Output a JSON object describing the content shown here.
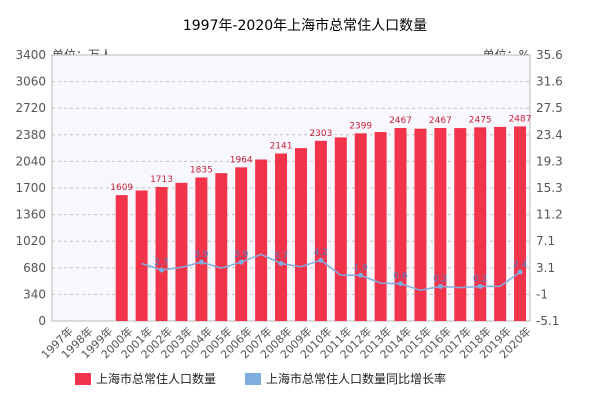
{
  "chart_data": {
    "type": "bar",
    "title": "1997年-2020年上海市总常住人口数量",
    "left_axis_unit": "单位：万人",
    "right_axis_unit": "单位：%",
    "categories": [
      "1997年",
      "1998年",
      "1999年",
      "2000年",
      "2001年",
      "2002年",
      "2003年",
      "2004年",
      "2005年",
      "2006年",
      "2007年",
      "2008年",
      "2009年",
      "2010年",
      "2011年",
      "2012年",
      "2013年",
      "2014年",
      "2015年",
      "2016年",
      "2017年",
      "2018年",
      "2019年",
      "2020年"
    ],
    "left_ticks": [
      "0",
      "340",
      "680",
      "1020",
      "1360",
      "1700",
      "2040",
      "2380",
      "2720",
      "3060",
      "3400"
    ],
    "right_ticks": [
      "-5.1",
      "-1",
      "3.1",
      "7.1",
      "11.2",
      "15.3",
      "19.3",
      "23.4",
      "27.5",
      "31.6",
      "35.6"
    ],
    "ylim_left": [
      0,
      3400
    ],
    "ylim_right": [
      -5.1,
      35.6
    ],
    "series": [
      {
        "name": "上海市总常住人口数量",
        "type": "bar",
        "axis": "left",
        "color": "#f2344b",
        "values": [
          null,
          null,
          null,
          1609,
          1668,
          1713,
          1766,
          1835,
          1890,
          1964,
          2064,
          2141,
          2210,
          2303,
          2347,
          2399,
          2415,
          2467,
          2458,
          2467,
          2466,
          2475,
          2481,
          2487
        ],
        "label_indices": [
          3,
          5,
          7,
          9,
          11,
          13,
          15,
          17,
          19,
          21,
          23
        ],
        "labels": [
          "1609",
          "1713",
          "1835",
          "1964",
          "2141",
          "2303",
          "2399",
          "2467",
          "2467",
          "2475",
          "2487"
        ]
      },
      {
        "name": "上海市总常住人口数量同比增长率",
        "type": "line",
        "axis": "right",
        "color": "#7eaee0",
        "values": [
          null,
          null,
          null,
          null,
          3.7,
          2.7,
          3.1,
          3.9,
          3.0,
          3.9,
          5.1,
          3.7,
          3.2,
          4.2,
          1.9,
          1.9,
          0.7,
          0.6,
          -0.4,
          0.2,
          0.0,
          0.2,
          0.2,
          2.4
        ],
        "label_indices": [
          5,
          7,
          9,
          11,
          13,
          15,
          17,
          19,
          21,
          23
        ],
        "labels": [
          "2.7",
          "3.9",
          "3.9",
          "3.7",
          "4.2",
          "1.9",
          "0.6",
          "0.2",
          "0.2",
          "2.4"
        ]
      }
    ],
    "legend_position": "bottom",
    "grid": true
  }
}
